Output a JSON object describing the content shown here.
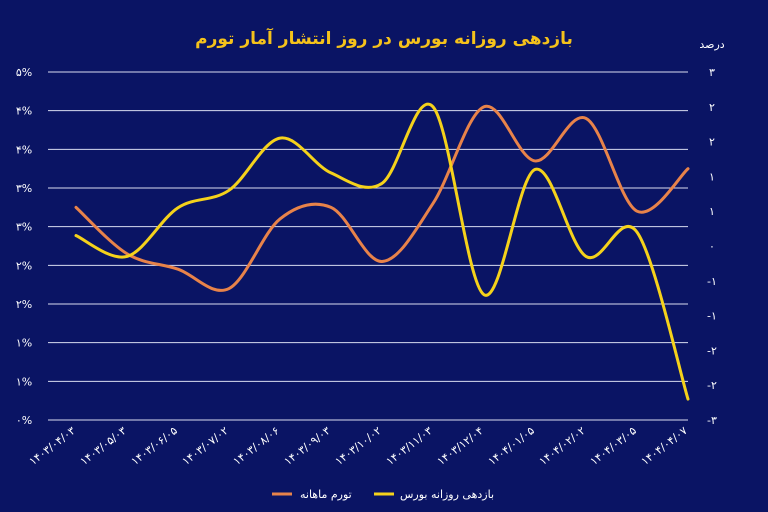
{
  "chart_data": {
    "type": "line",
    "title": "بازدهی روزانه بورس در روز انتشار آمار تورم",
    "right_axis_unit": "درصد",
    "x": [
      "۱۴۰۳/۰۴/۰۳",
      "۱۴۰۳/۰۵/۰۳",
      "۱۴۰۳/۰۶/۰۵",
      "۱۴۰۳/۰۷/۰۲",
      "۱۴۰۳/۰۸/۰۶",
      "۱۴۰۳/۰۹/۰۳",
      "۱۴۰۳/۱۰/۰۲",
      "۱۴۰۳/۱۱/۰۳",
      "۱۴۰۳/۱۲/۰۴",
      "۱۴۰۴/۰۱/۰۵",
      "۱۴۰۴/۰۲/۰۲",
      "۱۴۰۴/۰۳/۰۵",
      "۱۴۰۴/۰۴/۰۷"
    ],
    "left_axis": {
      "ticks": [
        "۰%",
        "۱%",
        "۱%",
        "۲%",
        "۲%",
        "۳%",
        "۳%",
        "۴%",
        "۴%",
        "۵%"
      ],
      "ylim": [
        0,
        4.5
      ]
    },
    "right_axis": {
      "ticks": [
        "-۳",
        "-۲",
        "-۲",
        "-۱",
        "-۱",
        "۰",
        "۱",
        "۱",
        "۲",
        "۲",
        "۳"
      ],
      "ylim": [
        -2.5,
        2.5
      ]
    },
    "series": [
      {
        "name": "تورم ماهانه",
        "axis": "left",
        "color": "#e8834a",
        "values": [
          2.75,
          2.15,
          1.95,
          1.7,
          2.6,
          2.75,
          2.05,
          2.8,
          4.05,
          3.35,
          3.9,
          2.7,
          3.25
        ]
      },
      {
        "name": "بازدهی روزانه بورس",
        "axis": "right",
        "color": "#f5d21b",
        "values": [
          0.15,
          -0.15,
          0.55,
          0.8,
          1.55,
          1.05,
          0.9,
          2.0,
          -0.7,
          1.1,
          -0.15,
          0.2,
          -2.2
        ]
      }
    ],
    "grid": true,
    "legend": "bottom-center"
  }
}
